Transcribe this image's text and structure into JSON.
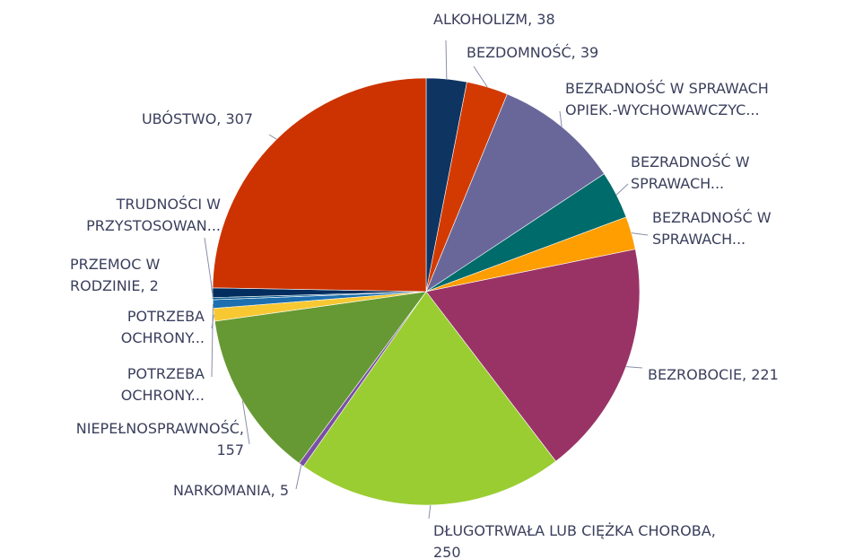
{
  "chart_data": {
    "type": "pie",
    "labels": [
      [
        "ALKOHOLIZM, 38"
      ],
      [
        "BEZDOMNOŚĆ, 39"
      ],
      [
        "BEZRADNOŚĆ W SPRAWACH",
        "OPIEK.-WYCHOWAWCZYC..."
      ],
      [
        "BEZRADNOŚĆ W",
        "SPRAWACH..."
      ],
      [
        "BEZRADNOŚĆ W",
        "SPRAWACH..."
      ],
      [
        "BEZROBOCIE, 221"
      ],
      [
        "DŁUGOTRWAŁA LUB CIĘŻKA CHOROBA,",
        "250"
      ],
      [
        "NARKOMANIA, 5"
      ],
      [
        "NIEPEŁNOSPRAWNOŚĆ,",
        "157"
      ],
      [
        "POTRZEBA",
        "OCHRONY..."
      ],
      [
        "POTRZEBA",
        "OCHRONY..."
      ],
      [
        "PRZEMOC W",
        "RODZINIE, 2"
      ],
      [
        "TRUDNOŚCI W",
        "PRZYSTOSOWAN..."
      ],
      [
        "UBÓSTWO, 307"
      ]
    ],
    "values": [
      38,
      39,
      118,
      45,
      31,
      221,
      250,
      5,
      157,
      12,
      8,
      2,
      9,
      307
    ],
    "colors": [
      "#0e3462",
      "#d33a02",
      "#69679a",
      "#006b6b",
      "#ff9e00",
      "#993366",
      "#9acd32",
      "#7b4fa5",
      "#669933",
      "#f8c832",
      "#1d6fb0",
      "#0a5a8c",
      "#022d5e",
      "#cc3300"
    ]
  }
}
